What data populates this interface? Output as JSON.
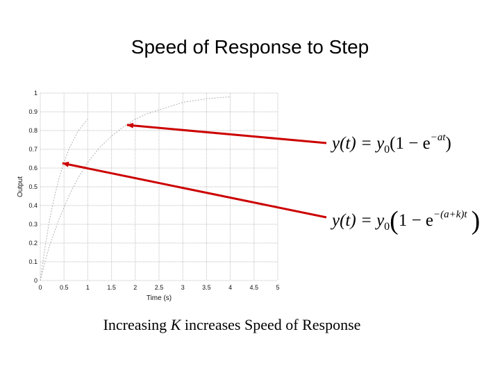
{
  "slide": {
    "title": "Speed of Response to Step",
    "caption_prefix": "Increasing ",
    "caption_var": "K",
    "caption_suffix": " increases Speed of Response"
  },
  "equations": {
    "first": {
      "lhs": "y(t) = y",
      "sub": "0",
      "open": "(1 − e",
      "exp": "−at",
      "close": ")"
    },
    "second": {
      "lhs": "y(t) = y",
      "sub": "0",
      "open": "1 − e",
      "exp": "−(a+k)t"
    }
  },
  "arrow_color": "#cc0000",
  "chart_data": {
    "type": "line",
    "xlabel": "Time (s)",
    "ylabel": "Output",
    "xlim": [
      0,
      5
    ],
    "ylim": [
      0,
      1
    ],
    "grid": true,
    "x_ticks": [
      "0",
      "0.5",
      "1",
      "1.5",
      "2",
      "2.5",
      "3",
      "3.5",
      "4",
      "4.5",
      "5"
    ],
    "y_ticks": [
      "0",
      "0.1",
      "0.2",
      "0.3",
      "0.4",
      "0.5",
      "0.6",
      "0.7",
      "0.8",
      "0.9",
      "1"
    ],
    "series": [
      {
        "x": [
          0,
          0.1,
          0.2,
          0.3,
          0.4,
          0.5,
          0.6,
          0.7,
          0.8,
          0.9,
          1.0
        ],
        "values": [
          0,
          0.18,
          0.33,
          0.45,
          0.55,
          0.63,
          0.7,
          0.75,
          0.8,
          0.83,
          0.86
        ]
      },
      {
        "x": [
          0,
          0.1,
          0.2,
          0.3,
          0.4,
          0.5,
          0.6,
          0.7,
          0.8,
          0.9,
          1.0,
          1.25,
          1.5,
          1.75,
          2.0,
          2.25,
          2.5,
          2.75,
          3.0,
          3.25,
          3.5,
          3.75,
          4.0
        ],
        "values": [
          0,
          0.1,
          0.19,
          0.26,
          0.33,
          0.39,
          0.45,
          0.5,
          0.55,
          0.59,
          0.63,
          0.71,
          0.77,
          0.82,
          0.86,
          0.89,
          0.91,
          0.93,
          0.95,
          0.96,
          0.97,
          0.975,
          0.98
        ]
      }
    ]
  }
}
